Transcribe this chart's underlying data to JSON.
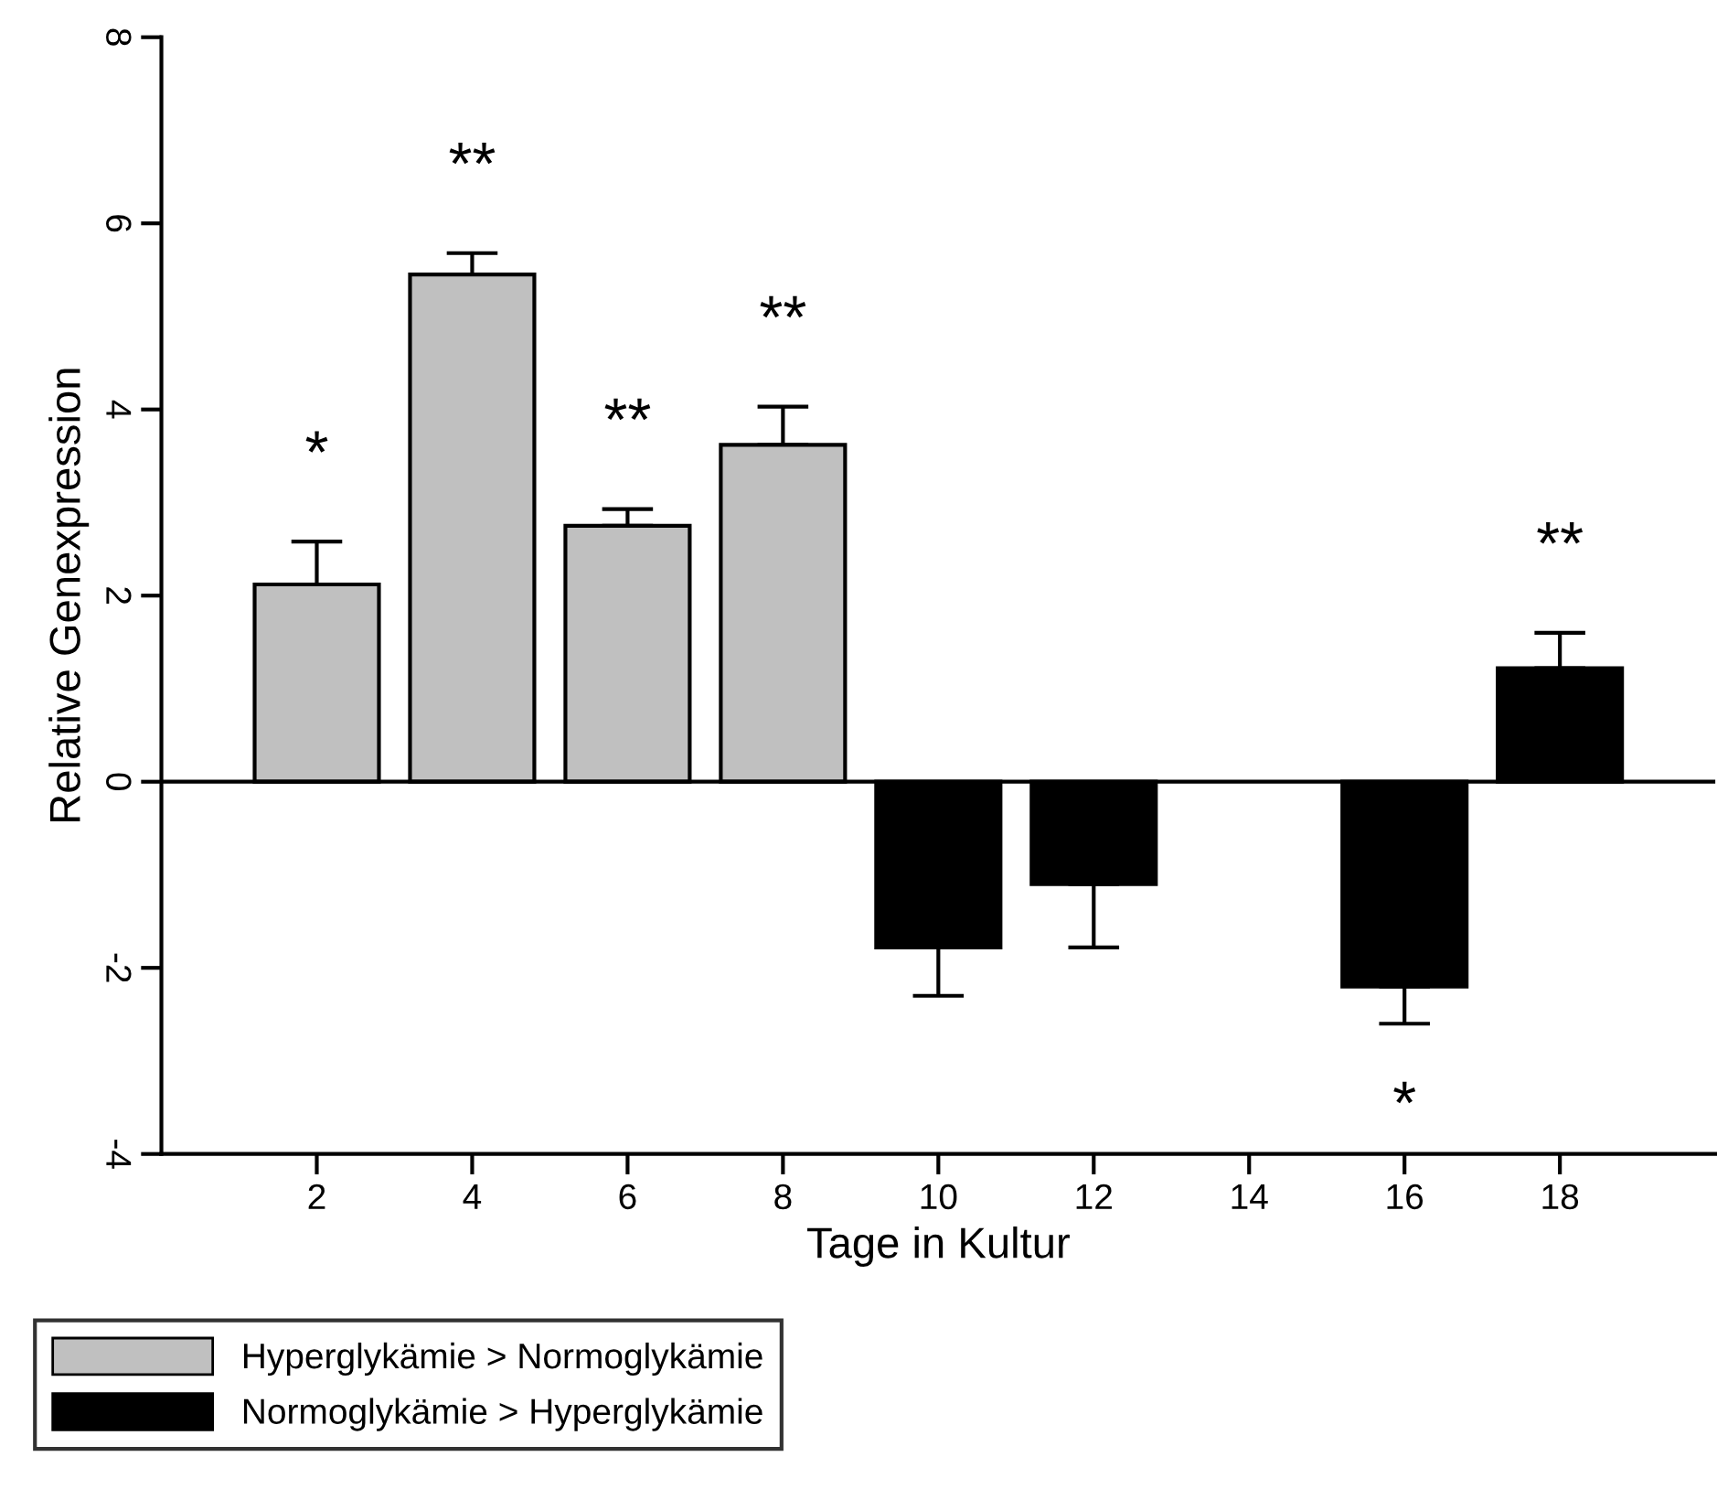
{
  "chart_data": {
    "type": "bar",
    "xlabel": "Tage in Kultur",
    "ylabel": "Relative Genexpression",
    "series": [
      {
        "name": "Hyperglykämie > Normoglykämie",
        "color": "#c0c0c0",
        "x": [
          2,
          4,
          6,
          8
        ],
        "values": [
          2.12,
          5.45,
          2.75,
          3.62
        ],
        "errors": [
          [
            2.12,
            2.58
          ],
          [
            5.45,
            5.68
          ],
          [
            2.75,
            2.93
          ],
          [
            3.62,
            4.03
          ]
        ]
      },
      {
        "name": "Normoglykämie > Hyperglykämie",
        "color": "#000000",
        "x": [
          10,
          12,
          16,
          18
        ],
        "values": [
          -1.78,
          -1.1,
          -2.2,
          1.22
        ],
        "errors": [
          [
            -2.3,
            -1.78
          ],
          [
            -1.78,
            -1.1
          ],
          [
            -2.6,
            -2.2
          ],
          [
            1.22,
            1.6
          ]
        ]
      }
    ],
    "xlim": [
      0,
      20
    ],
    "xticks": [
      2,
      4,
      6,
      8,
      10,
      12,
      14,
      16,
      18
    ],
    "ylim": [
      -4,
      8
    ],
    "yticks": [
      -4,
      -2,
      0,
      2,
      4,
      6,
      8
    ],
    "ref_lines": [
      {
        "axis": "y",
        "value": 0,
        "color": "#000000"
      }
    ],
    "annotations": [
      {
        "text": "*",
        "x": 2,
        "y": 2.12
      },
      {
        "text": "**",
        "x": 4,
        "y": 5.45
      },
      {
        "text": "**",
        "x": 6,
        "y": 2.75
      },
      {
        "text": "**",
        "x": 8,
        "y": 3.62
      },
      {
        "text": "*",
        "x": 16,
        "y": -2.2
      },
      {
        "text": "**",
        "x": 18,
        "y": 1.22
      }
    ],
    "legend": "bottom left",
    "grid": false
  }
}
